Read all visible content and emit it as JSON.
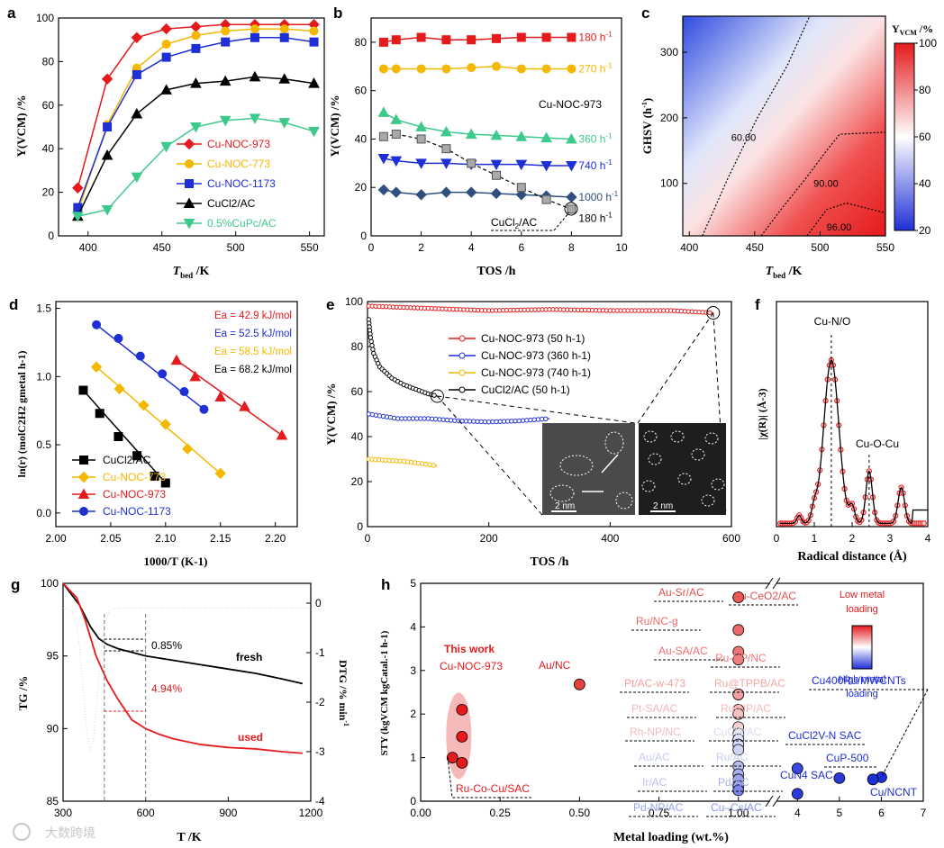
{
  "colors": {
    "red": "#e41a1c",
    "orange": "#f5b800",
    "blue": "#1f2fd6",
    "black": "#000000",
    "green": "#3ec98c",
    "gray": "#a9a9a9",
    "grid": "#000000"
  },
  "panels": [
    {
      "letter": "a"
    },
    {
      "letter": "b"
    },
    {
      "letter": "c"
    },
    {
      "letter": "d"
    },
    {
      "letter": "e"
    },
    {
      "letter": "f"
    },
    {
      "letter": "g"
    },
    {
      "letter": "h"
    }
  ],
  "watermark": "大数跨境",
  "chart_data": [
    {
      "panel": "a",
      "type": "line",
      "xlabel_main": "T",
      "xlabel_sub": "bed",
      "xlabel_unit": " /K",
      "ylabel": "Y(VCM) /%",
      "xlim": [
        380,
        560
      ],
      "ylim": [
        0,
        100
      ],
      "xticks": [
        400,
        450,
        500,
        550
      ],
      "yticks": [
        0,
        20,
        40,
        60,
        80,
        100
      ],
      "x": [
        393,
        413,
        433,
        453,
        473,
        493,
        513,
        533,
        553
      ],
      "series": [
        {
          "name": "Cu-NOC-973",
          "marker": "diamond",
          "color": "#e41a1c",
          "values": [
            22,
            72,
            91,
            95,
            96,
            97,
            97,
            97,
            97
          ]
        },
        {
          "name": "Cu-NOC-773",
          "marker": "circle",
          "color": "#f5b800",
          "values": [
            11,
            51,
            77,
            88,
            92,
            94,
            95,
            95,
            94
          ]
        },
        {
          "name": "Cu-NOC-1173",
          "marker": "square",
          "color": "#1f2fd6",
          "values": [
            13,
            50,
            74,
            82,
            86,
            89,
            91,
            91,
            89
          ]
        },
        {
          "name": "CuCl2/AC",
          "marker": "triangle",
          "color": "#000000",
          "values": [
            9,
            37,
            56,
            67,
            70,
            71,
            73,
            72,
            70
          ]
        },
        {
          "name": "0.5%CuPc/AC",
          "marker": "tri-down",
          "color": "#3ec98c",
          "values": [
            9,
            12,
            27,
            41,
            50,
            53,
            54,
            52,
            48
          ]
        }
      ]
    },
    {
      "panel": "b",
      "type": "line",
      "xlabel": "TOS /h",
      "ylabel": "Y(VCM) /%",
      "xlim": [
        0,
        10
      ],
      "ylim": [
        0,
        90
      ],
      "xticks": [
        0,
        2,
        4,
        6,
        8,
        10
      ],
      "yticks": [
        0,
        20,
        40,
        60,
        80
      ],
      "annotation": "Cu-NOC-973",
      "series": [
        {
          "name": "180 h-1",
          "label": "180 h",
          "color": "#e41a1c",
          "marker": "square",
          "x": [
            0.5,
            1,
            2,
            3,
            4,
            5,
            6,
            7,
            8
          ],
          "values": [
            80,
            81,
            82,
            81,
            81,
            81.5,
            82,
            82,
            82
          ]
        },
        {
          "name": "270 h-1",
          "label": "270 h",
          "color": "#f5b800",
          "marker": "circle",
          "x": [
            0.5,
            1,
            2,
            3,
            4,
            5,
            6,
            7,
            8
          ],
          "values": [
            69,
            69,
            69,
            69,
            69.5,
            70,
            69,
            69,
            69
          ]
        },
        {
          "name": "360 h-1",
          "label": "360 h",
          "color": "#3ec98c",
          "marker": "triangle",
          "x": [
            0.5,
            1,
            2,
            3,
            4,
            5,
            6,
            7,
            8
          ],
          "values": [
            51,
            48,
            45,
            43,
            42,
            41.5,
            41,
            40.5,
            40
          ]
        },
        {
          "name": "740 h-1",
          "label": "740 h",
          "color": "#1f2fd6",
          "marker": "tri-down",
          "x": [
            0.5,
            1,
            2,
            3,
            4,
            5,
            6,
            7,
            8
          ],
          "values": [
            32,
            31,
            30,
            30,
            29.5,
            29.5,
            29.5,
            29,
            29
          ]
        },
        {
          "name": "1000 h-1",
          "label": "1000 h",
          "color": "#2f4f7f",
          "marker": "diamond",
          "x": [
            0.5,
            1,
            2,
            3,
            4,
            5,
            6,
            7,
            8
          ],
          "values": [
            19,
            18,
            17,
            18,
            18,
            17.5,
            17,
            16.5,
            16
          ]
        },
        {
          "name": "CuCl2/AC 180 h-1",
          "label": "180 h",
          "color": "#a9a9a9",
          "marker": "square",
          "dashed": true,
          "x": [
            0.5,
            1,
            2,
            3,
            4,
            5,
            6,
            7,
            8
          ],
          "values": [
            41,
            42,
            40,
            36,
            30,
            25,
            20,
            15,
            11
          ]
        }
      ],
      "cucl2_label": "CuCl2/AC"
    },
    {
      "panel": "c",
      "type": "heatmap",
      "xlabel_main": "T",
      "xlabel_sub": "bed",
      "xlabel_unit": " /K",
      "ylabel": "GHSV (h-1)",
      "xlim": [
        395,
        550
      ],
      "ylim": [
        20,
        355
      ],
      "xticks": [
        400,
        450,
        500,
        550
      ],
      "yticks": [
        100,
        200,
        300
      ],
      "colorbar_title": "YVCM /%",
      "colorbar_ticks": [
        20,
        40,
        60,
        80,
        100
      ],
      "contours": [
        "60.00",
        "90.00",
        "96.00"
      ]
    },
    {
      "panel": "d",
      "type": "scatter",
      "xlabel": "1000/T (K-1)",
      "ylabel": "ln(r) (molC2H2 gmetal h-1)",
      "xlim": [
        2.0,
        2.22
      ],
      "ylim": [
        -0.1,
        1.55
      ],
      "xticks": [
        2.0,
        2.05,
        2.1,
        2.15,
        2.2
      ],
      "yticks": [
        0.0,
        0.5,
        1.0,
        1.5
      ],
      "ea": [
        {
          "text": "Ea = 42.9 kJ/mol",
          "color": "#e41a1c"
        },
        {
          "text": "Ea = 52.5 kJ/mol",
          "color": "#1f2fd6"
        },
        {
          "text": "Ea = 58.5 kJ/mol",
          "color": "#f5b800"
        },
        {
          "text": "Ea = 68.2 kJ/mol",
          "color": "#000000"
        }
      ],
      "series": [
        {
          "name": "CuCl2/AC",
          "color": "#000000",
          "marker": "square",
          "x": [
            2.025,
            2.04,
            2.057,
            2.074,
            2.09,
            2.1
          ],
          "values": [
            0.9,
            0.73,
            0.56,
            0.42,
            0.27,
            0.22
          ]
        },
        {
          "name": "Cu-NOC-773",
          "color": "#f5b800",
          "marker": "diamond",
          "x": [
            2.037,
            2.058,
            2.08,
            2.1,
            2.12,
            2.15
          ],
          "values": [
            1.07,
            0.91,
            0.79,
            0.65,
            0.47,
            0.29
          ]
        },
        {
          "name": "Cu-NOC-973",
          "color": "#e41a1c",
          "marker": "triangle",
          "x": [
            2.11,
            2.127,
            2.15,
            2.172,
            2.206
          ],
          "values": [
            1.12,
            1.0,
            0.85,
            0.78,
            0.57
          ]
        },
        {
          "name": "Cu-NOC-1173",
          "color": "#1f2fd6",
          "marker": "circle",
          "x": [
            2.037,
            2.057,
            2.077,
            2.097,
            2.117,
            2.135
          ],
          "values": [
            1.38,
            1.28,
            1.15,
            1.02,
            0.89,
            0.76
          ]
        }
      ]
    },
    {
      "panel": "e",
      "type": "line",
      "xlabel": "TOS /h",
      "ylabel": "Y(VCM) /%",
      "xlim": [
        0,
        600
      ],
      "ylim": [
        0,
        100
      ],
      "xticks": [
        0,
        200,
        400,
        600
      ],
      "yticks": [
        0,
        20,
        40,
        60,
        80,
        100
      ],
      "inset_scale": "2 nm",
      "series": [
        {
          "name": "Cu-NOC-973 (50 h-1)",
          "color": "#e41a1c",
          "x": [
            2,
            100,
            200,
            300,
            400,
            500,
            570
          ],
          "values": [
            98,
            97,
            96,
            96.5,
            96,
            96,
            95
          ]
        },
        {
          "name": "Cu-NOC-973 (360 h-1)",
          "color": "#1f2fd6",
          "x": [
            2,
            50,
            100,
            150,
            200,
            250,
            300
          ],
          "values": [
            50,
            48,
            48,
            47,
            46.5,
            47,
            48
          ]
        },
        {
          "name": "Cu-NOC-973 (740 h-1)",
          "color": "#f5b800",
          "x": [
            2,
            30,
            60,
            90,
            115
          ],
          "values": [
            30,
            29.5,
            29,
            28,
            27
          ]
        },
        {
          "name": "CuCl2/AC (50 h-1)",
          "color": "#000000",
          "x": [
            2,
            5,
            10,
            20,
            40,
            60,
            80,
            100,
            115
          ],
          "values": [
            92,
            84,
            77,
            71,
            66,
            63,
            61,
            59,
            58
          ]
        }
      ]
    },
    {
      "panel": "f",
      "type": "line",
      "xlabel": "Radical distance (Å)",
      "ylabel": "|χ(R)| (Å-3)",
      "xlim": [
        0,
        4
      ],
      "xticks": [
        0,
        1,
        2,
        3,
        4
      ],
      "labels": [
        "Cu-N/O",
        "Cu-O-Cu"
      ]
    },
    {
      "panel": "g",
      "type": "line",
      "xlabel": "T /K",
      "ylabel": "TG /%",
      "ylabel_right": "DTG /% min-1",
      "xlim": [
        300,
        1200
      ],
      "ylim": [
        85,
        100
      ],
      "ylim_right": [
        -4,
        0.4
      ],
      "xticks": [
        300,
        600,
        900,
        1200
      ],
      "yticks": [
        85,
        90,
        95,
        100
      ],
      "yticks_right": [
        0,
        -1,
        -2,
        -3,
        -4
      ],
      "annotations": [
        "0.85%",
        "4.94%",
        "fresh",
        "used"
      ],
      "series": [
        {
          "name": "fresh",
          "color": "#000000",
          "x": [
            300,
            360,
            400,
            430,
            460,
            500,
            600,
            700,
            800,
            900,
            1000,
            1100,
            1170
          ],
          "values": [
            100,
            98.5,
            97,
            96.2,
            95.8,
            95.5,
            95,
            94.7,
            94.4,
            94.1,
            93.8,
            93.4,
            93.1
          ]
        },
        {
          "name": "used",
          "color": "#e41a1c",
          "x": [
            300,
            350,
            380,
            420,
            460,
            500,
            550,
            600,
            650,
            700,
            800,
            900,
            1000,
            1100,
            1170
          ],
          "values": [
            100,
            99,
            97.5,
            95,
            93.3,
            92,
            90.6,
            90.0,
            89.6,
            89.3,
            88.9,
            88.7,
            88.6,
            88.4,
            88.3
          ]
        }
      ]
    },
    {
      "panel": "h",
      "type": "scatter",
      "xlabel": "Metal loading (wt.%)",
      "ylabel": "STY (kgVCM kgCatal.-1 h-1)",
      "ylim": [
        0,
        5
      ],
      "xticks_left": [
        "0.00",
        "0.25",
        "0.50",
        "0.75",
        "1.00"
      ],
      "xticks_right": [
        "4",
        "5",
        "6",
        "7"
      ],
      "yticks": [
        0,
        1,
        2,
        3,
        4,
        5
      ],
      "this_work": [
        "This work",
        "Cu-NOC-973"
      ],
      "colorbar_top": "Low metal loading",
      "colorbar_bottom": "High metal loading",
      "points": [
        {
          "label": "Ru-Co-Cu/SAC",
          "x": 0.1,
          "y": 1.0,
          "color": "#e41a1c"
        },
        {
          "label": "Cu-NOC-973",
          "x": 0.13,
          "y": 0.88,
          "color": "#e41a1c"
        },
        {
          "label": "Cu-NOC-973",
          "x": 0.13,
          "y": 1.48,
          "color": "#e41a1c"
        },
        {
          "label": "Cu-NOC-973",
          "x": 0.13,
          "y": 2.1,
          "color": "#e41a1c"
        },
        {
          "label": "Au/NC",
          "x": 0.5,
          "y": 2.68,
          "color": "#e8403a"
        },
        {
          "label": "Au-CeO2/AC",
          "x": 1.0,
          "y": 4.68,
          "color": "#ec5a5a"
        },
        {
          "label": "Au-Sr/AC",
          "x": 1.0,
          "y": 4.68,
          "color": "#ec5a5a"
        },
        {
          "label": "Ru/NC-g",
          "x": 1.0,
          "y": 3.93,
          "color": "#ee6a6a"
        },
        {
          "label": "Ru-NP/NC",
          "x": 1.0,
          "y": 3.43,
          "color": "#ef7575"
        },
        {
          "label": "Au-SA/AC",
          "x": 1.0,
          "y": 3.25,
          "color": "#f08080"
        },
        {
          "label": "Ru@TPPB/AC",
          "x": 1.0,
          "y": 2.45,
          "color": "#f4a0a0"
        },
        {
          "label": "Pt/AC-w-473",
          "x": 1.0,
          "y": 2.45,
          "color": "#f4a0a0"
        },
        {
          "label": "Pt-SA/AC",
          "x": 1.0,
          "y": 2.1,
          "color": "#f6b6b6"
        },
        {
          "label": "Ru-NP/AC",
          "x": 1.0,
          "y": 2.0,
          "color": "#f7c2c2"
        },
        {
          "label": "Rh-NP/NC",
          "x": 1.0,
          "y": 1.7,
          "color": "#f8d0d0"
        },
        {
          "label": "CuCl2/AC",
          "x": 1.0,
          "y": 1.55,
          "color": "#ece8f0"
        },
        {
          "label": "Au/AC",
          "x": 1.0,
          "y": 1.42,
          "color": "#e0e0f8"
        },
        {
          "label": "Ru/AC",
          "x": 1.0,
          "y": 1.3,
          "color": "#d8dcf6"
        },
        {
          "label": "Ir/AC",
          "x": 1.0,
          "y": 1.18,
          "color": "#d0d4f4"
        },
        {
          "label": "Pd/AC",
          "x": 1.0,
          "y": 0.8,
          "color": "#b8bef0"
        },
        {
          "label": "Pd-NP/AC",
          "x": 1.0,
          "y": 0.62,
          "color": "#aab0ee"
        },
        {
          "label": "Cu-Cs/AC",
          "x": 1.0,
          "y": 0.5,
          "color": "#9aa2ec"
        },
        {
          "label": "Cu-Cs/AC b",
          "x": 1.0,
          "y": 0.35,
          "color": "#8a94ea"
        },
        {
          "label": "Cu-Cs/AC c",
          "x": 1.0,
          "y": 0.25,
          "color": "#7a86e8"
        },
        {
          "label": "CuCl2V-N SAC",
          "x": 4.0,
          "y": 0.75,
          "color": "#3a4ae0"
        },
        {
          "label": "CuN4 SAC",
          "x": 4.0,
          "y": 0.17,
          "color": "#2a3ad8"
        },
        {
          "label": "CuP-500",
          "x": 5.0,
          "y": 0.53,
          "color": "#2a3ad8"
        },
        {
          "label": "Cu400Ru/MWCNTs",
          "x": 6.0,
          "y": 0.55,
          "color": "#1f2fd6"
        },
        {
          "label": "Cu/NCNT",
          "x": 5.8,
          "y": 0.5,
          "color": "#1f2fd6"
        }
      ],
      "labels": [
        "Au-Sr/AC",
        "Au-CeO2/AC",
        "Ru/NC-g",
        "Au-SA/AC",
        "Ru-NP/NC",
        "Pt/AC-w-473",
        "Ru@TPPB/AC",
        "Pt-SA/AC",
        "Ru-NP/AC",
        "Rh-NP/NC",
        "CuCl2/AC",
        "Au/AC",
        "Ru/AC",
        "Ir/AC",
        "Pd/AC",
        "Pd-NP/AC",
        "Cu–Cs/AC",
        "Ru-Co-Cu/SAC",
        "Au/NC",
        "Cu400Ru/MWCNTs",
        "CuCl2V-N SAC",
        "CuP-500",
        "CuN4 SAC",
        "Cu/NCNT"
      ]
    }
  ]
}
